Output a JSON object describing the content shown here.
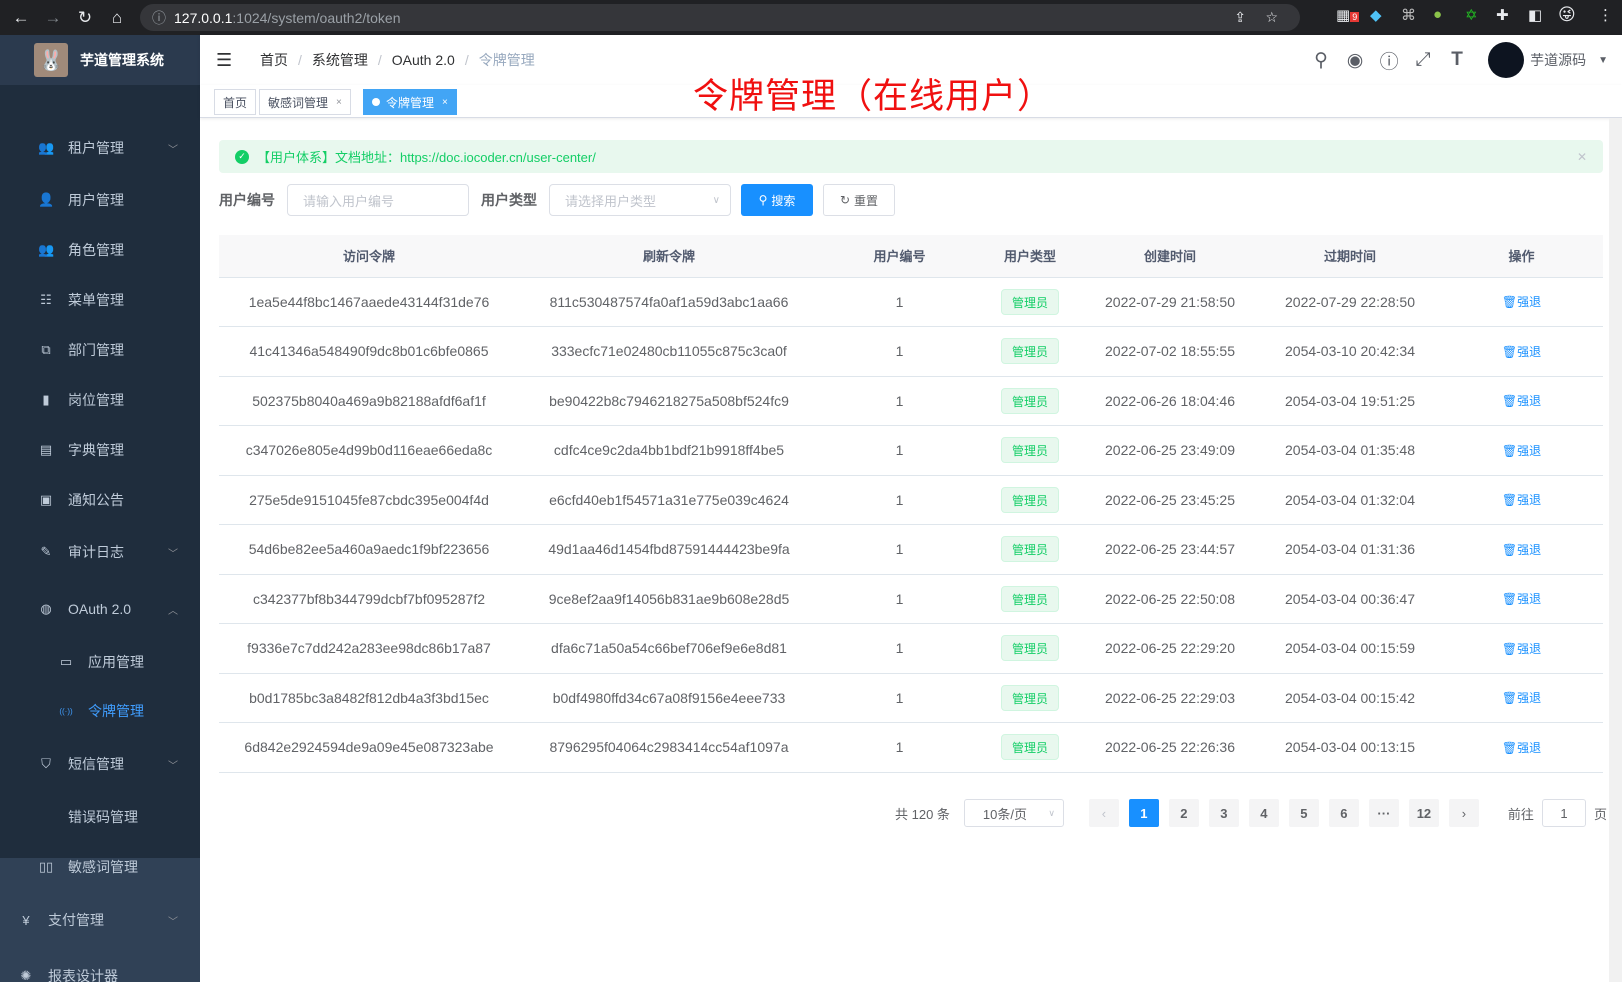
{
  "browser": {
    "url_host": "127.0.0.1",
    "url_path": ":1024/system/oauth2/token",
    "ext_badge": "9"
  },
  "sidebar": {
    "title": "芋道管理系统",
    "items": [
      {
        "label": "租户管理",
        "icon": "tenant-icon",
        "arrow": "down"
      },
      {
        "label": "用户管理",
        "icon": "user-icon"
      },
      {
        "label": "角色管理",
        "icon": "role-icon"
      },
      {
        "label": "菜单管理",
        "icon": "menu-tree-icon"
      },
      {
        "label": "部门管理",
        "icon": "org-icon"
      },
      {
        "label": "岗位管理",
        "icon": "post-icon"
      },
      {
        "label": "字典管理",
        "icon": "dict-icon"
      },
      {
        "label": "通知公告",
        "icon": "message-icon"
      },
      {
        "label": "审计日志",
        "icon": "log-icon",
        "arrow": "down"
      },
      {
        "label": "OAuth 2.0",
        "icon": "oauth-icon",
        "arrow": "up"
      },
      {
        "label": "应用管理",
        "icon": "app-icon"
      },
      {
        "label": "令牌管理",
        "icon": "token-icon",
        "active": true
      },
      {
        "label": "短信管理",
        "icon": "sms-icon",
        "arrow": "down"
      },
      {
        "label": "错误码管理",
        "icon": "code-icon"
      },
      {
        "label": "敏感词管理",
        "icon": "book-icon"
      },
      {
        "label": "支付管理",
        "icon": "yen-icon",
        "arrow": "down"
      },
      {
        "label": "报表设计器",
        "icon": "report-icon"
      }
    ]
  },
  "navbar": {
    "breadcrumb": [
      "首页",
      "系统管理",
      "OAuth 2.0",
      "令牌管理"
    ],
    "username": "芋道源码"
  },
  "tags": [
    {
      "label": "首页"
    },
    {
      "label": "敏感词管理"
    },
    {
      "label": "令牌管理",
      "active": true
    }
  ],
  "annotation": "令牌管理（在线用户）",
  "alert": {
    "text": "【用户体系】文档地址：https://doc.iocoder.cn/user-center/"
  },
  "form": {
    "user_id_label": "用户编号",
    "user_id_placeholder": "请输入用户编号",
    "user_type_label": "用户类型",
    "user_type_placeholder": "请选择用户类型",
    "search": "搜索",
    "reset": "重置"
  },
  "table": {
    "headers": [
      "访问令牌",
      "刷新令牌",
      "用户编号",
      "用户类型",
      "创建时间",
      "过期时间",
      "操作"
    ],
    "action": "强退",
    "rows": [
      [
        "1ea5e44f8bc1467aaede43144f31de76",
        "811c530487574fa0af1a59d3abc1aa66",
        "1",
        "管理员",
        "2022-07-29 21:58:50",
        "2022-07-29 22:28:50"
      ],
      [
        "41c41346a548490f9dc8b01c6bfe0865",
        "333ecfc71e02480cb11055c875c3ca0f",
        "1",
        "管理员",
        "2022-07-02 18:55:55",
        "2054-03-10 20:42:34"
      ],
      [
        "502375b8040a469a9b82188afdf6af1f",
        "be90422b8c7946218275a508bf524fc9",
        "1",
        "管理员",
        "2022-06-26 18:04:46",
        "2054-03-04 19:51:25"
      ],
      [
        "c347026e805e4d99b0d116eae66eda8c",
        "cdfc4ce9c2da4bb1bdf21b9918ff4be5",
        "1",
        "管理员",
        "2022-06-25 23:49:09",
        "2054-03-04 01:35:48"
      ],
      [
        "275e5de9151045fe87cbdc395e004f4d",
        "e6cfd40eb1f54571a31e775e039c4624",
        "1",
        "管理员",
        "2022-06-25 23:45:25",
        "2054-03-04 01:32:04"
      ],
      [
        "54d6be82ee5a460a9aedc1f9bf223656",
        "49d1aa46d1454fbd87591444423be9fa",
        "1",
        "管理员",
        "2022-06-25 23:44:57",
        "2054-03-04 01:31:36"
      ],
      [
        "c342377bf8b344799dcbf7bf095287f2",
        "9ce8ef2aa9f14056b831ae9b608e28d5",
        "1",
        "管理员",
        "2022-06-25 22:50:08",
        "2054-03-04 00:36:47"
      ],
      [
        "f9336e7c7dd242a283ee98dc86b17a87",
        "dfa6c71a50a54c66bef706ef9e6e8d81",
        "1",
        "管理员",
        "2022-06-25 22:29:20",
        "2054-03-04 00:15:59"
      ],
      [
        "b0d1785bc3a8482f812db4a3f3bd15ec",
        "b0df4980ffd34c67a08f9156e4eee733",
        "1",
        "管理员",
        "2022-06-25 22:29:03",
        "2054-03-04 00:15:42"
      ],
      [
        "6d842e2924594de9a09e45e087323abe",
        "8796295f04064c2983414cc54af1097a",
        "1",
        "管理员",
        "2022-06-25 22:26:36",
        "2054-03-04 00:13:15"
      ]
    ]
  },
  "pagination": {
    "total": "共 120 条",
    "page_size": "10条/页",
    "pages": [
      "1",
      "2",
      "3",
      "4",
      "5",
      "6",
      "···",
      "12"
    ],
    "current": "1",
    "goto_label": "前往",
    "goto_value": "1",
    "page_suffix": "页"
  }
}
